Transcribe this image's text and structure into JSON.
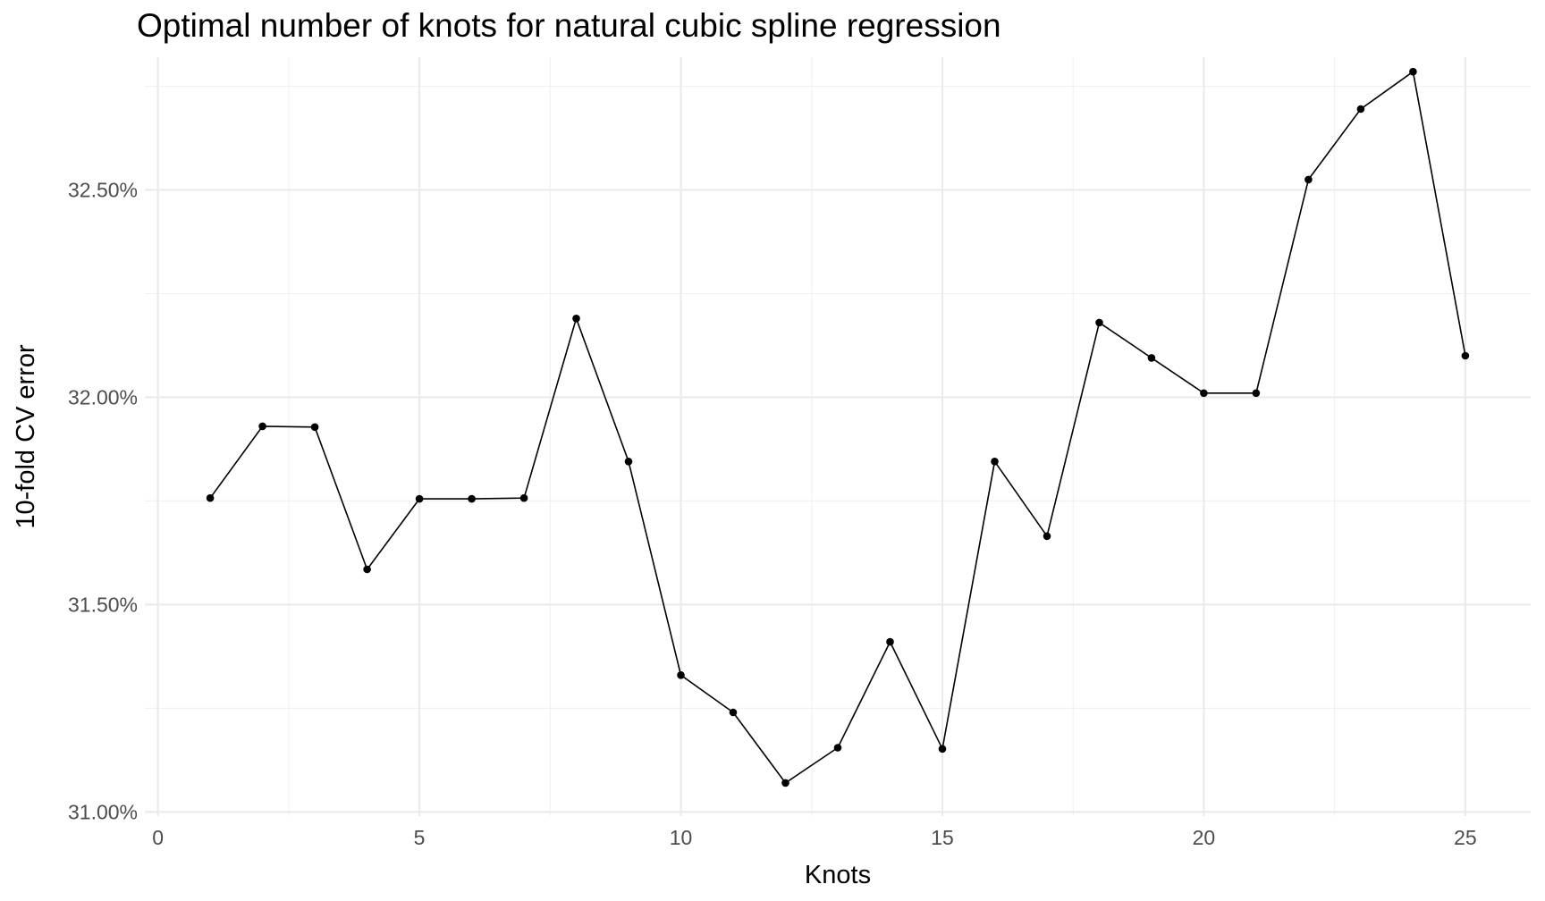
{
  "chart_data": {
    "type": "line",
    "title": "Optimal number of knots for natural cubic spline regression",
    "xlabel": "Knots",
    "ylabel": "10-fold CV error",
    "xlim": [
      0,
      26
    ],
    "ylim": [
      31.0,
      32.8
    ],
    "x_ticks": [
      0,
      5,
      10,
      15,
      20,
      25
    ],
    "x_tick_labels": [
      "0",
      "5",
      "10",
      "15",
      "20",
      "25"
    ],
    "y_ticks": [
      31.0,
      31.5,
      32.0,
      32.5
    ],
    "y_tick_labels": [
      "31.00%",
      "31.50%",
      "32.00%",
      "32.50%"
    ],
    "grid": true,
    "legend": "none",
    "series": [
      {
        "x": [
          1,
          2,
          3,
          4,
          5,
          6,
          7,
          8,
          9,
          10,
          11,
          12,
          13,
          14,
          15,
          16,
          17,
          18,
          19,
          20,
          21,
          22,
          23,
          24,
          25
        ],
        "values": [
          31.757,
          31.93,
          31.928,
          31.585,
          31.755,
          31.755,
          31.757,
          32.19,
          31.845,
          31.33,
          31.24,
          31.07,
          31.155,
          31.41,
          31.152,
          31.845,
          31.665,
          32.18,
          32.095,
          32.01,
          32.01,
          32.525,
          32.695,
          32.785,
          32.1
        ]
      }
    ],
    "colors": {
      "line": "#000000",
      "point": "#000000",
      "grid_major": "#ebebeb",
      "grid_minor": "#f2f2f2",
      "tick_text": "#4d4d4d"
    }
  }
}
